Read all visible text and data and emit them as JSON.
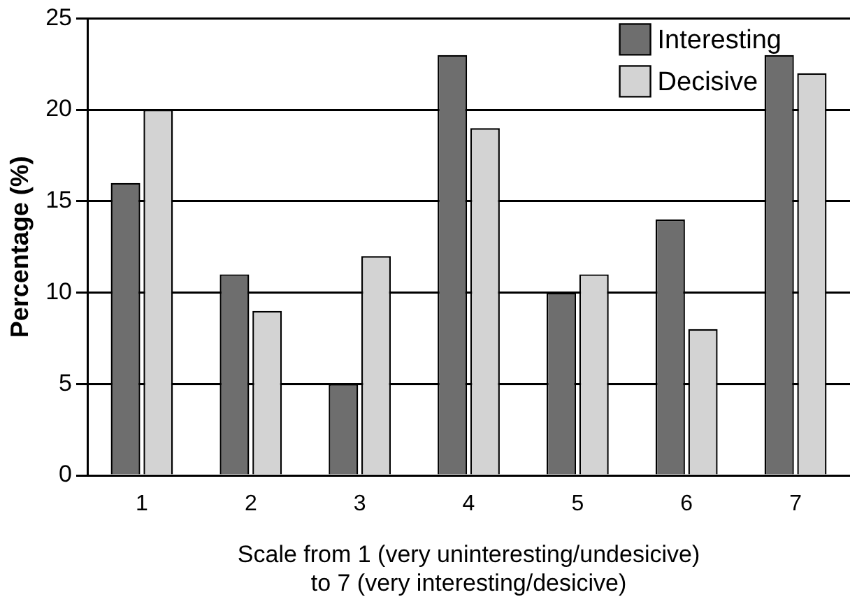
{
  "chart_data": {
    "type": "bar",
    "xlabel": "Scale from 1 (very uninteresting/undesicive)\nto 7 (very interesting/desicive)",
    "ylabel": "Percentage (%)",
    "categories": [
      "1",
      "2",
      "3",
      "4",
      "5",
      "6",
      "7"
    ],
    "series": [
      {
        "name": "Interesting",
        "color": "#6e6e6e",
        "values": [
          16,
          11,
          5,
          23,
          10,
          14,
          23
        ]
      },
      {
        "name": "Decisive",
        "color": "#d3d3d3",
        "values": [
          20,
          9,
          12,
          19,
          11,
          8,
          22
        ]
      }
    ],
    "ylim": [
      0,
      25
    ],
    "yticks": [
      0,
      5,
      10,
      15,
      20,
      25
    ],
    "grid": "y",
    "legend": "top right"
  }
}
